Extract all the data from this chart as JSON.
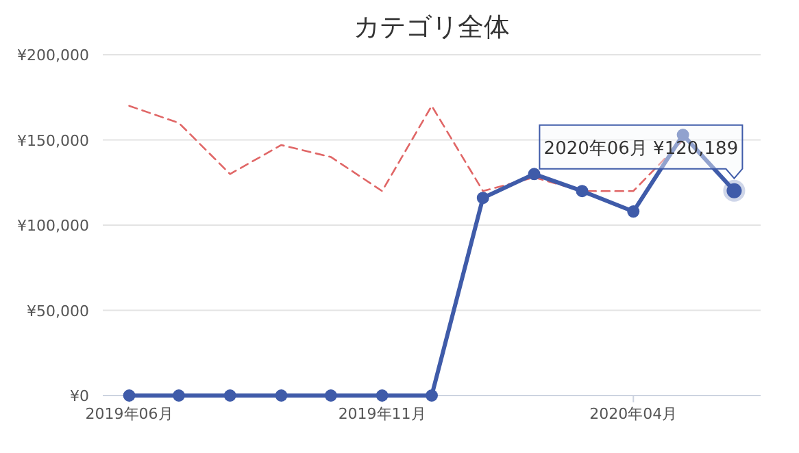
{
  "chart_data": {
    "type": "line",
    "title": "カテゴリ全体",
    "x": [
      "2019-06",
      "2019-07",
      "2019-08",
      "2019-09",
      "2019-10",
      "2019-11",
      "2019-12",
      "2020-01",
      "2020-02",
      "2020-03",
      "2020-04",
      "2020-05",
      "2020-06"
    ],
    "series": [
      {
        "color": "#e06666",
        "line_style": "dashed",
        "marker": "none",
        "values": [
          170000,
          160000,
          130000,
          147000,
          140000,
          120000,
          170000,
          120000,
          128000,
          120000,
          120000,
          150000,
          null
        ]
      },
      {
        "color": "#3f5ba9",
        "line_style": "solid",
        "marker": "circle",
        "values": [
          0,
          0,
          0,
          0,
          0,
          0,
          0,
          116000,
          130000,
          120000,
          108000,
          153000,
          120189
        ]
      }
    ],
    "xlim": [
      "2019-05-16",
      "2020-06-17"
    ],
    "xticks": [
      {
        "value": "2019-06",
        "label": "2019年06月"
      },
      {
        "value": "2019-11",
        "label": "2019年11月"
      },
      {
        "value": "2020-04",
        "label": "2020年04月"
      }
    ],
    "ylim": [
      0,
      200000
    ],
    "yticks": [
      {
        "value": 0,
        "label": "¥0"
      },
      {
        "value": 50000,
        "label": "¥50,000"
      },
      {
        "value": 100000,
        "label": "¥100,000"
      },
      {
        "value": 150000,
        "label": "¥150,000"
      },
      {
        "value": 200000,
        "label": "¥200,000"
      }
    ],
    "grid": "y",
    "annotations": [
      {
        "text": "2020年06月 ¥120,189",
        "x": "2020-06",
        "y": 120189
      }
    ]
  }
}
